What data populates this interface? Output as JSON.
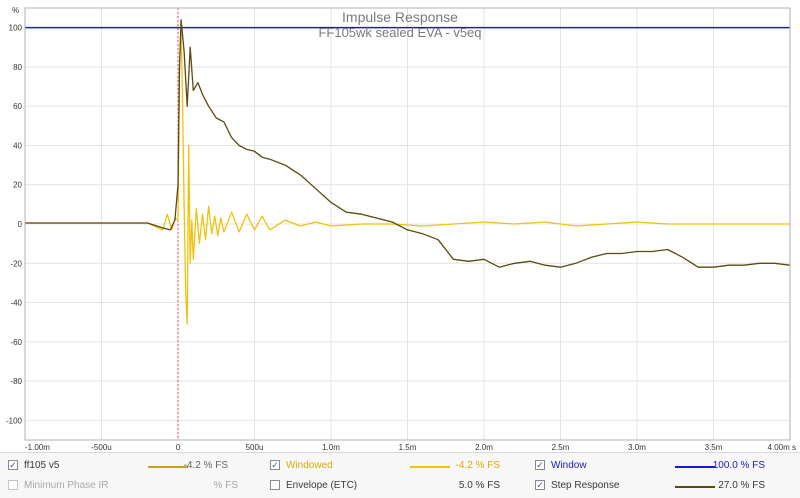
{
  "chart_data": {
    "type": "line",
    "title": "Impulse Response",
    "subtitle": "FF105wk sealed EVA - v5eq",
    "ylabel": "%",
    "xlabel": "",
    "xlim": [
      -1.0,
      4.0
    ],
    "ylim": [
      -110,
      110
    ],
    "grid": true,
    "x_ticks": [
      {
        "value": -1.0,
        "label": "-1.00m"
      },
      {
        "value": -0.5,
        "label": "-500u"
      },
      {
        "value": 0.0,
        "label": "0"
      },
      {
        "value": 0.5,
        "label": "500u"
      },
      {
        "value": 1.0,
        "label": "1.0m"
      },
      {
        "value": 1.5,
        "label": "1.5m"
      },
      {
        "value": 2.0,
        "label": "2.0m"
      },
      {
        "value": 2.5,
        "label": "2.5m"
      },
      {
        "value": 3.0,
        "label": "3.0m"
      },
      {
        "value": 3.5,
        "label": "3.5m"
      },
      {
        "value": 4.0,
        "label": "4.00m s"
      }
    ],
    "y_ticks": [
      {
        "value": 100,
        "label": "100"
      },
      {
        "value": 80,
        "label": "80"
      },
      {
        "value": 60,
        "label": "60"
      },
      {
        "value": 40,
        "label": "40"
      },
      {
        "value": 20,
        "label": "20"
      },
      {
        "value": 0,
        "label": "0"
      },
      {
        "value": -20,
        "label": "-20"
      },
      {
        "value": -40,
        "label": "-40"
      },
      {
        "value": -60,
        "label": "-60"
      },
      {
        "value": -80,
        "label": "-80"
      },
      {
        "value": -100,
        "label": "-100"
      }
    ],
    "series": [
      {
        "name": "Windowed",
        "color": "#f2c10f",
        "x": [
          -1.0,
          -0.5,
          -0.2,
          -0.1,
          -0.07,
          -0.04,
          -0.02,
          0.0,
          0.01,
          0.02,
          0.03,
          0.04,
          0.05,
          0.06,
          0.07,
          0.08,
          0.09,
          0.1,
          0.12,
          0.14,
          0.16,
          0.18,
          0.2,
          0.22,
          0.24,
          0.26,
          0.28,
          0.3,
          0.35,
          0.4,
          0.45,
          0.5,
          0.55,
          0.6,
          0.7,
          0.8,
          0.9,
          1.0,
          1.2,
          1.4,
          1.6,
          1.8,
          2.0,
          2.2,
          2.4,
          2.6,
          2.8,
          3.0,
          3.2,
          3.4,
          3.6,
          3.8,
          4.0
        ],
        "y": [
          0.5,
          0.5,
          0.5,
          -3,
          5,
          -3,
          3,
          2,
          80,
          101,
          60,
          10,
          -35,
          -51,
          40,
          -20,
          2,
          -18,
          8,
          -10,
          5,
          -8,
          9,
          -5,
          4,
          -6,
          3,
          -4,
          6,
          -4,
          5,
          -3,
          4,
          -3,
          2,
          -1,
          1,
          -1,
          0,
          0,
          -1,
          0,
          1,
          0,
          1,
          -1,
          0,
          1,
          0,
          0,
          0,
          0,
          0
        ]
      },
      {
        "name": "Step Response",
        "color": "#5c4a12",
        "x": [
          -1.0,
          -0.5,
          -0.2,
          -0.1,
          -0.05,
          -0.02,
          0.0,
          0.01,
          0.02,
          0.04,
          0.06,
          0.08,
          0.1,
          0.13,
          0.16,
          0.2,
          0.25,
          0.3,
          0.35,
          0.4,
          0.45,
          0.5,
          0.55,
          0.6,
          0.7,
          0.8,
          0.9,
          1.0,
          1.1,
          1.2,
          1.3,
          1.4,
          1.5,
          1.6,
          1.7,
          1.8,
          1.9,
          2.0,
          2.1,
          2.2,
          2.3,
          2.4,
          2.5,
          2.6,
          2.7,
          2.8,
          2.9,
          3.0,
          3.1,
          3.2,
          3.3,
          3.4,
          3.5,
          3.6,
          3.7,
          3.8,
          3.9,
          4.0
        ],
        "y": [
          0.5,
          0.5,
          0.5,
          -2,
          -3,
          2,
          20,
          80,
          104,
          88,
          60,
          90,
          68,
          72,
          66,
          60,
          54,
          52,
          44,
          40,
          38,
          37,
          34,
          33,
          30,
          25,
          18,
          11,
          6,
          5,
          3,
          1,
          -3,
          -5,
          -8,
          -18,
          -19,
          -18,
          -22,
          -20,
          -19,
          -21,
          -22,
          -20,
          -17,
          -15,
          -15,
          -14,
          -14,
          -13,
          -17,
          -22,
          -22,
          -21,
          -21,
          -20,
          -20,
          -21
        ]
      },
      {
        "name": "Window",
        "color": "#1a1ad6",
        "x": [
          -1.0,
          4.0
        ],
        "y": [
          100,
          100
        ]
      }
    ]
  },
  "legend": {
    "row1": [
      {
        "label": "ff105 v5",
        "checked": true,
        "enabled": true,
        "color": "#c8a020",
        "value": "-4.2 % FS"
      },
      {
        "label": "Windowed",
        "checked": true,
        "enabled": true,
        "color": "#f2c10f",
        "value": "-4.2 % FS"
      },
      {
        "label": "Window",
        "checked": true,
        "enabled": true,
        "color": "#1a1ad6",
        "value": "100.0 % FS"
      }
    ],
    "row2": [
      {
        "label": "Minimum Phase IR",
        "checked": false,
        "enabled": false,
        "color": "",
        "value": "% FS"
      },
      {
        "label": "Envelope (ETC)",
        "checked": false,
        "enabled": true,
        "color": "",
        "value": "5.0 % FS"
      },
      {
        "label": "Step Response",
        "checked": true,
        "enabled": true,
        "color": "#5c4a12",
        "value": "27.0 % FS"
      }
    ]
  }
}
